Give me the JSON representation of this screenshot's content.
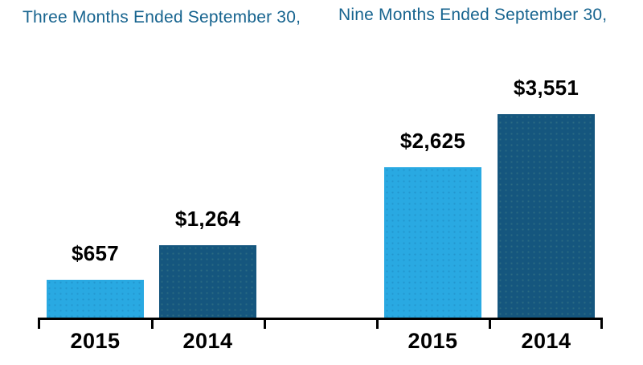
{
  "chart_data": {
    "type": "bar",
    "groups": [
      {
        "title": "Three Months Ended September 30,",
        "categories": [
          "2015",
          "2014"
        ],
        "values": [
          657,
          1264
        ],
        "value_labels": [
          "$657",
          "$1,264"
        ]
      },
      {
        "title": "Nine Months Ended September 30,",
        "categories": [
          "2015",
          "2014"
        ],
        "values": [
          2625,
          3551
        ],
        "value_labels": [
          "$2,625",
          "$3,551"
        ]
      }
    ],
    "colors": {
      "bar_2015_light_blue": "#29A9E2",
      "bar_2014_dark_blue": "#15567E",
      "group_title_text": "#17648F",
      "value_and_category_text": "#000000",
      "axis": "#000000"
    },
    "layout_hints": {
      "ylim": [
        0,
        3551
      ],
      "grid": false,
      "legend": "none",
      "value_labels_position": "above bars",
      "category_labels_position": "below axis"
    }
  }
}
